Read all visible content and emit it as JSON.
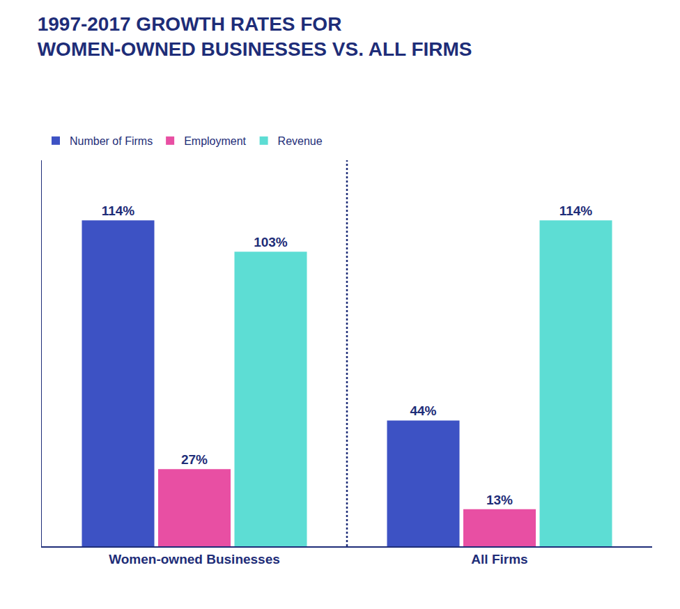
{
  "chart_data": {
    "type": "bar",
    "title": "1997-2017 GROWTH RATES FOR\nWOMEN-OWNED BUSINESSES VS. ALL FIRMS",
    "categories": [
      "Women-owned Businesses",
      "All Firms"
    ],
    "series": [
      {
        "name": "Number of Firms",
        "color": "#3D52C4",
        "values": [
          114,
          44
        ],
        "value_labels": [
          "114%",
          "44%"
        ]
      },
      {
        "name": "Employment",
        "color": "#E84FA3",
        "values": [
          27,
          13
        ],
        "value_labels": [
          "27%",
          "13%"
        ]
      },
      {
        "name": "Revenue",
        "color": "#5DDDD4",
        "values": [
          103,
          114
        ],
        "value_labels": [
          "103%",
          "114%"
        ]
      }
    ],
    "ylim": [
      0,
      135
    ],
    "grid": false,
    "legend": "top",
    "data_labels": true,
    "tick_labels": "x"
  }
}
